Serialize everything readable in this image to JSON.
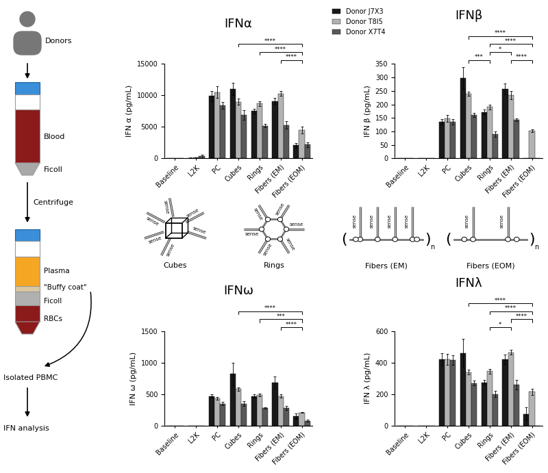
{
  "diagram": {
    "donors": "Donors",
    "tube1": [
      "Blood",
      "Ficoll"
    ],
    "centrifuge": "Centrifuge",
    "tube2": [
      "Plasma",
      "\"Buffy coat\"",
      "Ficoll",
      "RBCs"
    ],
    "isolated": "Isolated PBMC",
    "analysis": "IFN analysis"
  },
  "schematics": [
    {
      "label": "Cubes",
      "strands": [
        "sense",
        "sense",
        "sense",
        "sense",
        "sense",
        "sense"
      ]
    },
    {
      "label": "Rings",
      "strands": [
        "sense",
        "sense",
        "sense",
        "sense",
        "sense",
        "sense"
      ]
    },
    {
      "label": "Fibers (EM)",
      "strands": [
        "sense",
        "sense",
        "sense",
        "sense"
      ],
      "repeat": {
        "open": "(",
        "close": ")",
        "count": "n"
      }
    },
    {
      "label": "Fibers (EOM)",
      "strands": [
        "sense",
        "sense"
      ],
      "repeat": {
        "open": "(",
        "close": ")",
        "count": "n"
      }
    }
  ],
  "chart_data": [
    {
      "type": "bar",
      "title": "IFNα",
      "y_label": "IFN α (pg/mL)",
      "categories": [
        "Baseline",
        "L2K",
        "PC",
        "Cubes",
        "Rings",
        "Fibers (EM)",
        "Fibers (EOM)"
      ],
      "series": [
        {
          "name": "Donor J7X3",
          "color": "#1a1a1a",
          "values": [
            0,
            100,
            9900,
            11000,
            7500,
            9100,
            2100
          ],
          "errors": [
            0,
            100,
            800,
            1000,
            400,
            500,
            300
          ]
        },
        {
          "name": "Donor T8I5",
          "color": "#b3b3b3",
          "values": [
            0,
            120,
            10500,
            9000,
            8700,
            10300,
            4500
          ],
          "errors": [
            0,
            80,
            900,
            500,
            400,
            400,
            500
          ]
        },
        {
          "name": "Donor X7T4",
          "color": "#595959",
          "values": [
            0,
            350,
            8400,
            6900,
            5200,
            5300,
            2200
          ],
          "errors": [
            0,
            250,
            500,
            800,
            300,
            600,
            400
          ]
        }
      ],
      "ylim": [
        0,
        15000
      ],
      "yticks": [
        0,
        5000,
        10000,
        15000
      ],
      "legend": "upper center",
      "comparisons": [
        {
          "from": "Cubes",
          "to": "Fibers (EOM)",
          "label": "****"
        },
        {
          "from": "Rings",
          "to": "Fibers (EOM)",
          "label": "****"
        },
        {
          "from": "Fibers (EM)",
          "to": "Fibers (EOM)",
          "label": "****"
        }
      ]
    },
    {
      "type": "bar",
      "title": "IFNβ",
      "y_label": "IFN β (pg/mL)",
      "categories": [
        "Baseline",
        "L2K",
        "PC",
        "Cubes",
        "Rings",
        "Fibers (EM)",
        "Fibers (EOM)"
      ],
      "series": [
        {
          "name": "Donor J7X3",
          "color": "#1a1a1a",
          "values": [
            0,
            0,
            135,
            298,
            172,
            258,
            0
          ],
          "errors": [
            0,
            0,
            10,
            40,
            8,
            20,
            0
          ]
        },
        {
          "name": "Donor T8I5",
          "color": "#b3b3b3",
          "values": [
            0,
            0,
            148,
            240,
            190,
            235,
            102
          ],
          "errors": [
            0,
            0,
            12,
            8,
            8,
            15,
            5
          ]
        },
        {
          "name": "Donor X7T4",
          "color": "#595959",
          "values": [
            0,
            0,
            135,
            160,
            90,
            142,
            0
          ],
          "errors": [
            0,
            0,
            10,
            8,
            10,
            5,
            0
          ]
        }
      ],
      "ylim": [
        0,
        350
      ],
      "yticks": [
        0,
        50,
        100,
        150,
        200,
        250,
        300,
        350
      ],
      "comparisons": [
        {
          "from": "Cubes",
          "to": "Fibers (EOM)",
          "label": "****"
        },
        {
          "from": "Cubes",
          "to": "Rings",
          "label": "***"
        },
        {
          "from": "Rings",
          "to": "Fibers (EOM)",
          "label": "****"
        },
        {
          "from": "Rings",
          "to": "Fibers (EM)",
          "label": "*"
        },
        {
          "from": "Fibers (EM)",
          "to": "Fibers (EOM)",
          "label": "****"
        }
      ]
    },
    {
      "type": "bar",
      "title": "IFNω",
      "y_label": "IFN ω (pg/mL)",
      "categories": [
        "Baseline",
        "L2K",
        "PC",
        "Cubes",
        "Rings",
        "Fibers (EM)",
        "Fibers (EOM)"
      ],
      "series": [
        {
          "name": "Donor J7X3",
          "color": "#1a1a1a",
          "values": [
            0,
            0,
            470,
            820,
            470,
            680,
            150
          ],
          "errors": [
            0,
            0,
            25,
            180,
            30,
            100,
            40
          ]
        },
        {
          "name": "Donor T8I5",
          "color": "#b3b3b3",
          "values": [
            0,
            0,
            430,
            580,
            490,
            470,
            210
          ],
          "errors": [
            0,
            0,
            20,
            30,
            20,
            30,
            10
          ]
        },
        {
          "name": "Donor X7T4",
          "color": "#595959",
          "values": [
            0,
            0,
            350,
            350,
            280,
            280,
            80
          ],
          "errors": [
            0,
            0,
            25,
            40,
            15,
            30,
            15
          ]
        }
      ],
      "ylim": [
        0,
        1500
      ],
      "yticks": [
        0,
        500,
        1000,
        1500
      ],
      "comparisons": [
        {
          "from": "Cubes",
          "to": "Fibers (EOM)",
          "label": "****"
        },
        {
          "from": "Rings",
          "to": "Fibers (EOM)",
          "label": "***"
        },
        {
          "from": "Fibers (EM)",
          "to": "Fibers (EOM)",
          "label": "****"
        }
      ]
    },
    {
      "type": "bar",
      "title": "IFNλ",
      "y_label": "IFN λ (pg/mL)",
      "categories": [
        "Baseline",
        "L2K",
        "PC",
        "Cubes",
        "Rings",
        "Fibers (EM)",
        "Fibers (EOM)"
      ],
      "series": [
        {
          "name": "Donor J7X3",
          "color": "#1a1a1a",
          "values": [
            0,
            0,
            420,
            460,
            275,
            420,
            75
          ],
          "errors": [
            0,
            0,
            40,
            90,
            15,
            30,
            40
          ]
        },
        {
          "name": "Donor T8I5",
          "color": "#b3b3b3",
          "values": [
            0,
            0,
            420,
            340,
            345,
            465,
            215
          ],
          "errors": [
            0,
            0,
            35,
            15,
            15,
            15,
            20
          ]
        },
        {
          "name": "Donor X7T4",
          "color": "#595959",
          "values": [
            0,
            0,
            415,
            270,
            200,
            260,
            0
          ],
          "errors": [
            0,
            0,
            30,
            15,
            20,
            30,
            0
          ]
        }
      ],
      "ylim": [
        0,
        600
      ],
      "yticks": [
        0,
        200,
        400,
        600
      ],
      "comparisons": [
        {
          "from": "Cubes",
          "to": "Fibers (EOM)",
          "label": "****"
        },
        {
          "from": "Rings",
          "to": "Fibers (EOM)",
          "label": "****"
        },
        {
          "from": "Rings",
          "to": "Fibers (EM)",
          "label": "*"
        },
        {
          "from": "Fibers (EM)",
          "to": "Fibers (EOM)",
          "label": "****"
        }
      ]
    }
  ]
}
